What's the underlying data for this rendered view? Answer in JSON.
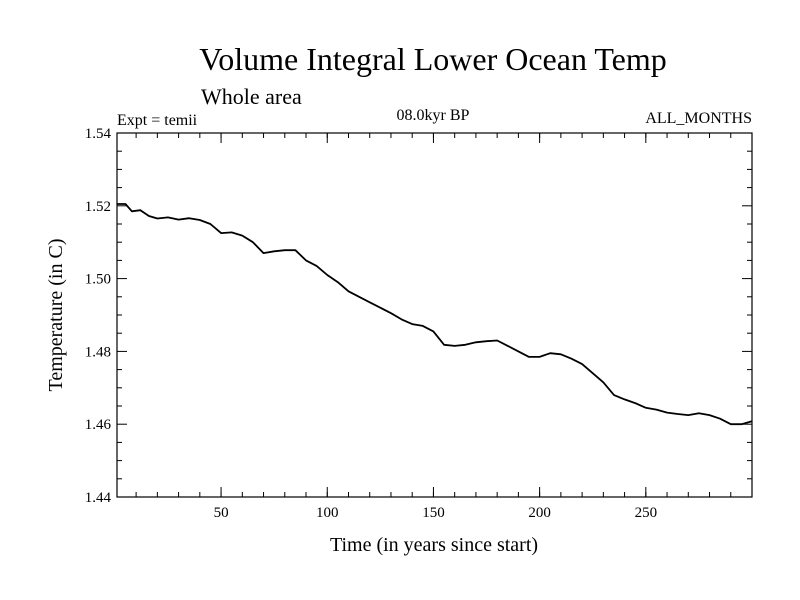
{
  "chart_data": {
    "type": "line",
    "title": "Volume Integral Lower Ocean Temp",
    "subtitle": "Whole area",
    "experiment_label": "Expt = temii",
    "period_label": "08.0kyr BP",
    "months_label": "ALL_MONTHS",
    "xlabel": "Time (in years since start)",
    "ylabel": "Temperature (in C)",
    "xlim": [
      1,
      300
    ],
    "ylim": [
      1.44,
      1.54
    ],
    "x_ticks": [
      50,
      100,
      150,
      200,
      250
    ],
    "x_tick_labels": [
      "50",
      "100",
      "150",
      "200",
      "250"
    ],
    "y_ticks": [
      1.44,
      1.46,
      1.48,
      1.5,
      1.52,
      1.54
    ],
    "y_tick_labels": [
      "1.44",
      "1.46",
      "1.48",
      "1.50",
      "1.52",
      "1.54"
    ],
    "series": [
      {
        "name": "temii",
        "x": [
          1,
          5,
          8,
          12,
          16,
          20,
          25,
          30,
          35,
          40,
          45,
          50,
          55,
          60,
          65,
          70,
          75,
          80,
          85,
          90,
          95,
          100,
          105,
          110,
          115,
          120,
          125,
          130,
          135,
          140,
          145,
          150,
          155,
          160,
          165,
          170,
          175,
          180,
          185,
          190,
          195,
          200,
          205,
          210,
          215,
          220,
          225,
          230,
          235,
          240,
          245,
          250,
          255,
          260,
          265,
          270,
          275,
          280,
          285,
          290,
          295,
          300
        ],
        "y": [
          1.5205,
          1.5205,
          1.5185,
          1.5188,
          1.5172,
          1.5165,
          1.5168,
          1.5162,
          1.5166,
          1.5161,
          1.515,
          1.5125,
          1.5127,
          1.5118,
          1.51,
          1.507,
          1.5075,
          1.5078,
          1.5078,
          1.505,
          1.5035,
          1.501,
          1.499,
          1.4965,
          1.495,
          1.4935,
          1.492,
          1.4905,
          1.4888,
          1.4875,
          1.487,
          1.4855,
          1.4818,
          1.4815,
          1.4818,
          1.4825,
          1.4828,
          1.483,
          1.4815,
          1.48,
          1.4785,
          1.4785,
          1.4795,
          1.4792,
          1.478,
          1.4765,
          1.474,
          1.4715,
          1.468,
          1.4668,
          1.4658,
          1.4645,
          1.464,
          1.4632,
          1.4628,
          1.4625,
          1.463,
          1.4625,
          1.4615,
          1.46,
          1.46,
          1.4608
        ]
      }
    ]
  }
}
